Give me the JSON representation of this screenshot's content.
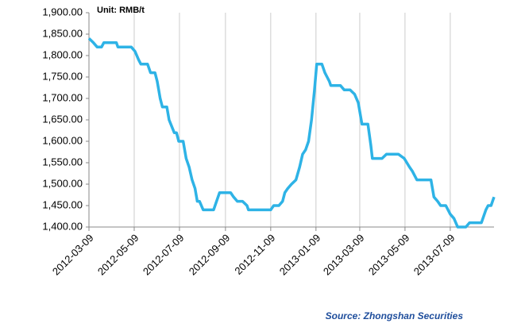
{
  "chart_data": {
    "type": "line",
    "subtitle": "Unit: RMB/t",
    "source": "Source: Zhongshan Securities",
    "grid": "x",
    "xlim": [
      "2012-03-09",
      "2013-09-06"
    ],
    "xticks": [
      "2012-03-09",
      "2012-05-09",
      "2012-07-09",
      "2012-09-09",
      "2012-11-09",
      "2013-01-09",
      "2013-03-09",
      "2013-05-09",
      "2013-07-09"
    ],
    "ylim": [
      1400,
      1900
    ],
    "yticks": [
      {
        "value": 1400,
        "label": "1,400.00"
      },
      {
        "value": 1450,
        "label": "1,450.00"
      },
      {
        "value": 1500,
        "label": "1,500.00"
      },
      {
        "value": 1550,
        "label": "1,550.00"
      },
      {
        "value": 1600,
        "label": "1,600.00"
      },
      {
        "value": 1650,
        "label": "1,650.00"
      },
      {
        "value": 1700,
        "label": "1,700.00"
      },
      {
        "value": 1750,
        "label": "1,750.00"
      },
      {
        "value": 1800,
        "label": "1,800.00"
      },
      {
        "value": 1850,
        "label": "1,850.00"
      },
      {
        "value": 1900,
        "label": "1,900.00"
      }
    ],
    "x": [
      "2012-03-09",
      "2012-03-15",
      "2012-03-20",
      "2012-03-26",
      "2012-03-29",
      "2012-04-15",
      "2012-04-17",
      "2012-05-05",
      "2012-05-10",
      "2012-05-15",
      "2012-05-18",
      "2012-05-27",
      "2012-05-31",
      "2012-06-06",
      "2012-06-09",
      "2012-06-13",
      "2012-06-16",
      "2012-06-22",
      "2012-06-25",
      "2012-07-02",
      "2012-07-05",
      "2012-07-08",
      "2012-07-14",
      "2012-07-18",
      "2012-07-22",
      "2012-07-26",
      "2012-07-30",
      "2012-08-02",
      "2012-08-05",
      "2012-08-10",
      "2012-08-24",
      "2012-08-28",
      "2012-09-01",
      "2012-09-16",
      "2012-09-20",
      "2012-09-25",
      "2012-10-02",
      "2012-10-08",
      "2012-10-10",
      "2012-11-09",
      "2012-11-13",
      "2012-11-20",
      "2012-11-25",
      "2012-11-28",
      "2012-12-02",
      "2012-12-07",
      "2012-12-13",
      "2012-12-18",
      "2012-12-22",
      "2012-12-26",
      "2012-12-30",
      "2013-01-03",
      "2013-01-07",
      "2013-01-10",
      "2013-01-17",
      "2013-01-21",
      "2013-01-24",
      "2013-01-27",
      "2013-01-29",
      "2013-02-11",
      "2013-02-16",
      "2013-02-24",
      "2013-03-02",
      "2013-03-07",
      "2013-03-12",
      "2013-03-20",
      "2013-03-24",
      "2013-03-26",
      "2013-04-08",
      "2013-04-14",
      "2013-04-30",
      "2013-05-08",
      "2013-05-15",
      "2013-05-19",
      "2013-05-25",
      "2013-06-13",
      "2013-06-17",
      "2013-06-22",
      "2013-06-26",
      "2013-07-03",
      "2013-07-09",
      "2013-07-14",
      "2013-07-19",
      "2013-07-30",
      "2013-08-04",
      "2013-08-20",
      "2013-08-26",
      "2013-08-29",
      "2013-09-02",
      "2013-09-06"
    ],
    "series": [
      {
        "color": "#2eb3e6",
        "values": [
          1840,
          1830,
          1820,
          1820,
          1830,
          1830,
          1820,
          1820,
          1810,
          1790,
          1780,
          1780,
          1760,
          1760,
          1740,
          1700,
          1680,
          1680,
          1650,
          1620,
          1620,
          1600,
          1600,
          1560,
          1540,
          1510,
          1490,
          1460,
          1460,
          1440,
          1440,
          1460,
          1480,
          1480,
          1470,
          1460,
          1460,
          1450,
          1440,
          1440,
          1450,
          1450,
          1460,
          1480,
          1490,
          1500,
          1510,
          1540,
          1570,
          1580,
          1600,
          1650,
          1720,
          1780,
          1780,
          1760,
          1750,
          1740,
          1730,
          1730,
          1720,
          1720,
          1710,
          1690,
          1640,
          1640,
          1590,
          1560,
          1560,
          1570,
          1570,
          1560,
          1540,
          1530,
          1510,
          1510,
          1470,
          1460,
          1450,
          1450,
          1430,
          1420,
          1400,
          1400,
          1410,
          1410,
          1440,
          1450,
          1450,
          1470
        ]
      }
    ]
  }
}
